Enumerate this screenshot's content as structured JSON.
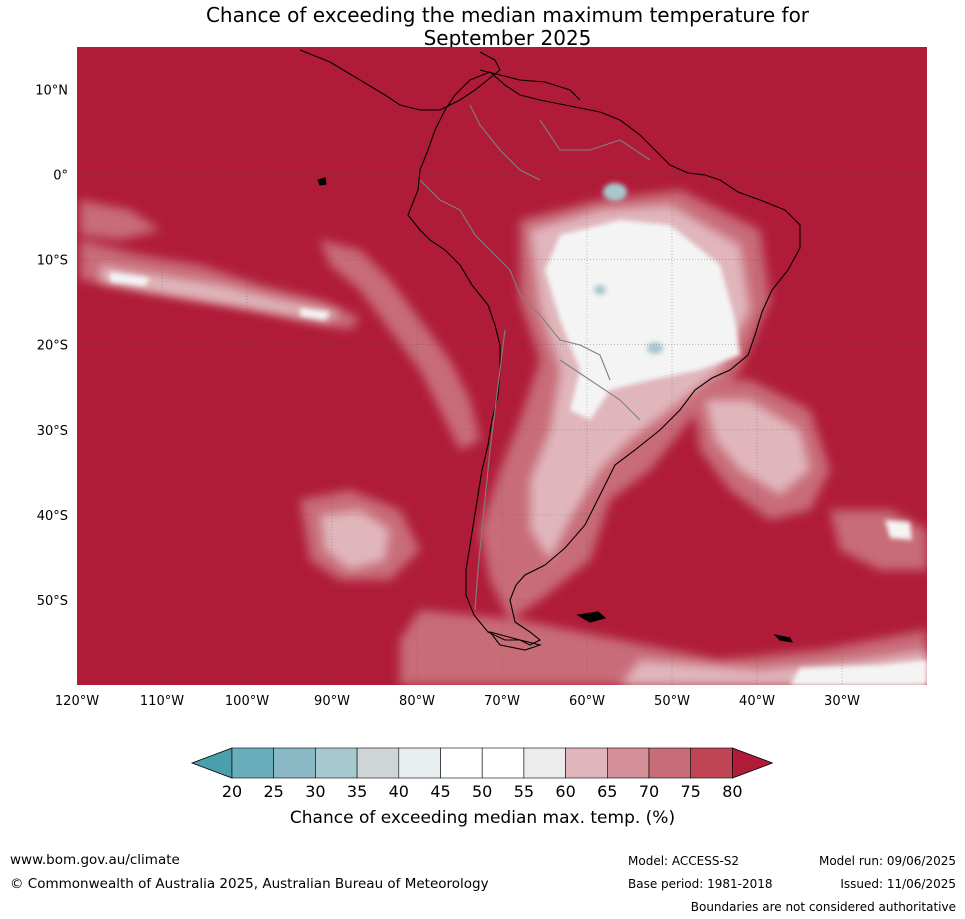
{
  "title_line1": "Chance of exceeding the median maximum temperature for",
  "title_line2": "September 2025",
  "map": {
    "lon_range": [
      -120,
      -20
    ],
    "lat_range": [
      -60,
      15
    ],
    "lat_ticks": [
      {
        "value": 10,
        "label": "10°N"
      },
      {
        "value": 0,
        "label": "0°"
      },
      {
        "value": -10,
        "label": "10°S"
      },
      {
        "value": -20,
        "label": "20°S"
      },
      {
        "value": -30,
        "label": "30°S"
      },
      {
        "value": -40,
        "label": "40°S"
      },
      {
        "value": -50,
        "label": "50°S"
      }
    ],
    "lon_ticks": [
      {
        "value": -120,
        "label": "120°W"
      },
      {
        "value": -110,
        "label": "110°W"
      },
      {
        "value": -100,
        "label": "100°W"
      },
      {
        "value": -90,
        "label": "90°W"
      },
      {
        "value": -80,
        "label": "80°W"
      },
      {
        "value": -70,
        "label": "70°W"
      },
      {
        "value": -60,
        "label": "60°W"
      },
      {
        "value": -50,
        "label": "50°W"
      },
      {
        "value": -40,
        "label": "40°W"
      },
      {
        "value": -30,
        "label": "30°W"
      }
    ],
    "background_color": "#b01c38"
  },
  "colorbar": {
    "label": "Chance of exceeding median max. temp. (%)",
    "ticks": [
      "20",
      "25",
      "30",
      "35",
      "40",
      "45",
      "50",
      "55",
      "60",
      "65",
      "70",
      "75",
      "80"
    ],
    "colors": [
      "#4a9fad",
      "#6aaebb",
      "#8ab9c5",
      "#a8c8cf",
      "#d0d6d8",
      "#e8eef0",
      "#ffffff",
      "#ffffff",
      "#ececec",
      "#e0b6bc",
      "#d48e98",
      "#c86c78",
      "#bf4555",
      "#b01c38"
    ]
  },
  "footer": {
    "website": "www.bom.gov.au/climate",
    "copyright": "© Commonwealth of Australia 2025, Australian Bureau of Meteorology",
    "model": "Model: ACCESS-S2",
    "base_period": "Base period: 1981-2018",
    "model_run": "Model run: 09/06/2025",
    "issued": "Issued: 11/06/2025",
    "disclaimer": "Boundaries are not considered authoritative"
  }
}
